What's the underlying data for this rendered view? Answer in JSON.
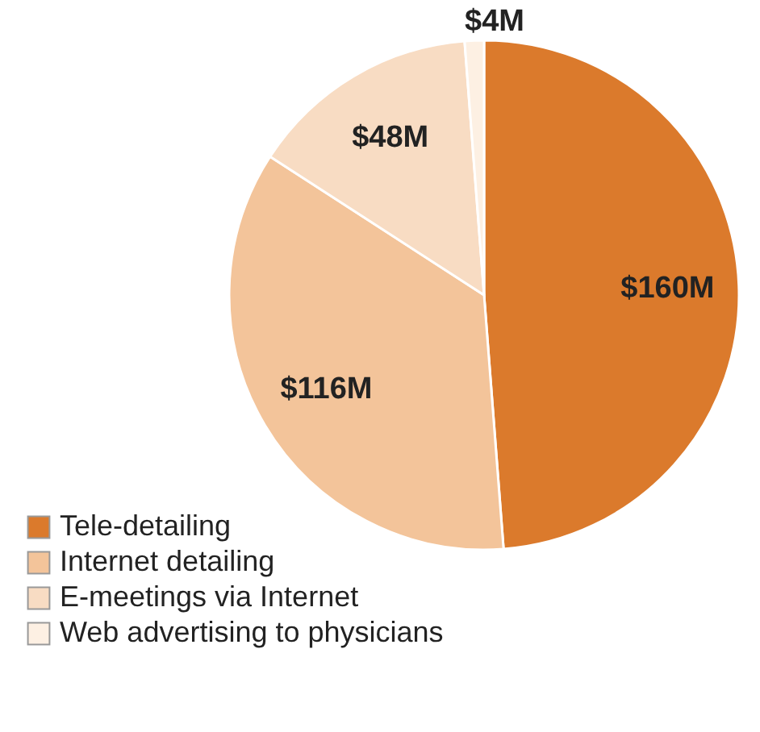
{
  "chart_data": {
    "type": "pie",
    "categories": [
      "Tele-detailing",
      "Internet detailing",
      "E-meetings via Internet",
      "Web advertising to physicians"
    ],
    "values": [
      160,
      116,
      48,
      4
    ],
    "colors": [
      "#db7a2c",
      "#f3c49a",
      "#f8dcc3",
      "#fdf0e3"
    ],
    "value_labels": [
      "$160M",
      "$116M",
      "$48M",
      "$4M"
    ],
    "legend": "bottom left"
  }
}
